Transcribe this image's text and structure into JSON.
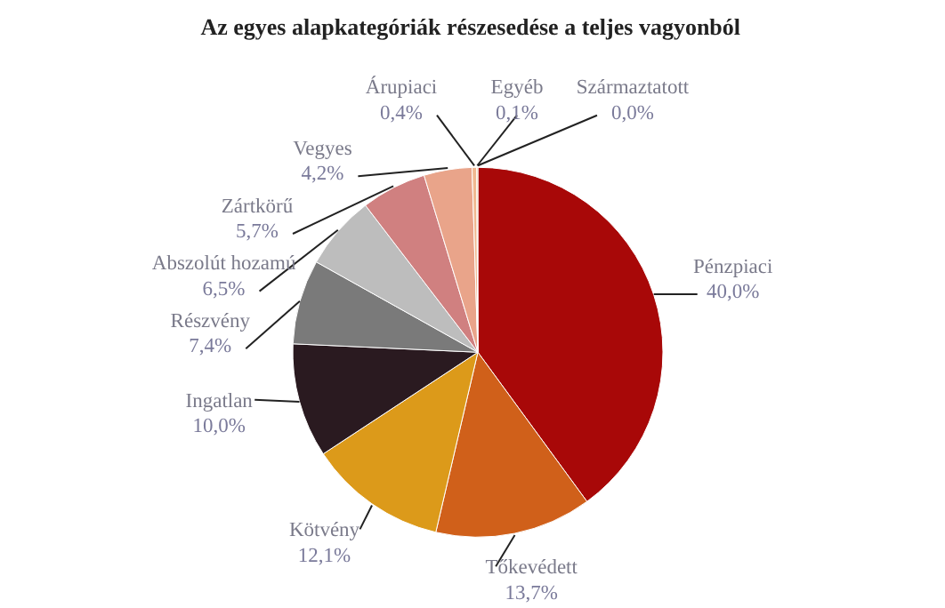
{
  "chart_data": {
    "type": "pie",
    "title": "Az egyes alapkategóriák részesedése  a teljes vagyonból",
    "categories": [
      "Pénzpiaci",
      "Tőkevédett",
      "Kötvény",
      "Ingatlan",
      "Részvény",
      "Abszolút hozamú",
      "Zártkörű",
      "Vegyes",
      "Árupiaci",
      "Egyéb",
      "Származtatott"
    ],
    "values": [
      40.0,
      13.7,
      12.1,
      10.0,
      7.4,
      6.5,
      5.7,
      4.2,
      0.4,
      0.1,
      0.0
    ],
    "value_labels": [
      "40,0%",
      "13,7%",
      "12,1%",
      "10,0%",
      "7,4%",
      "6,5%",
      "5,7%",
      "4,2%",
      "0,4%",
      "0,1%",
      "0,0%"
    ],
    "colors": [
      "#a80808",
      "#d0601a",
      "#dc9a1a",
      "#2a1a20",
      "#7a7a7a",
      "#bdbdbd",
      "#d08080",
      "#e9a48a",
      "#f0b890",
      "#e8c080",
      "#f0d0a0"
    ]
  }
}
